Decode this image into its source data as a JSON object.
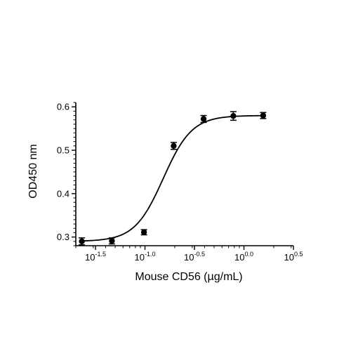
{
  "chart_data": {
    "type": "scatter",
    "title": "",
    "xlabel": "Mouse CD56 (µg/mL)",
    "ylabel": "OD450 nm",
    "x_scale": "log10",
    "xlim": [
      0.02,
      3.1623
    ],
    "ylim": [
      0.28,
      0.61
    ],
    "x_ticks": [
      {
        "value": 0.031623,
        "base": "10",
        "exp": "-1.5"
      },
      {
        "value": 0.1,
        "base": "10",
        "exp": "-1.0"
      },
      {
        "value": 0.316228,
        "base": "10",
        "exp": "-0.5"
      },
      {
        "value": 1,
        "base": "10",
        "exp": "0.0"
      },
      {
        "value": 3.162278,
        "base": "10",
        "exp": "0.5"
      }
    ],
    "y_ticks": [
      {
        "value": 0.3,
        "label": "0.3"
      },
      {
        "value": 0.4,
        "label": "0.4"
      },
      {
        "value": 0.5,
        "label": "0.5"
      },
      {
        "value": 0.6,
        "label": "0.6"
      }
    ],
    "grid": false,
    "legend": "none",
    "series": [
      {
        "x": [
          0.023,
          0.0463,
          0.0977,
          0.195,
          0.391,
          0.781,
          1.563
        ],
        "y": [
          0.29,
          0.291,
          0.311,
          0.51,
          0.572,
          0.579,
          0.58
        ],
        "err": [
          0.008,
          0.007,
          0.006,
          0.008,
          0.008,
          0.01,
          0.007
        ],
        "color": "#000000",
        "marker": "circle"
      }
    ],
    "fit_curve": {
      "model": "4PL",
      "bottom": 0.29,
      "top": 0.58,
      "ec50": 0.153,
      "hill": 3.0,
      "color": "#000000"
    }
  }
}
